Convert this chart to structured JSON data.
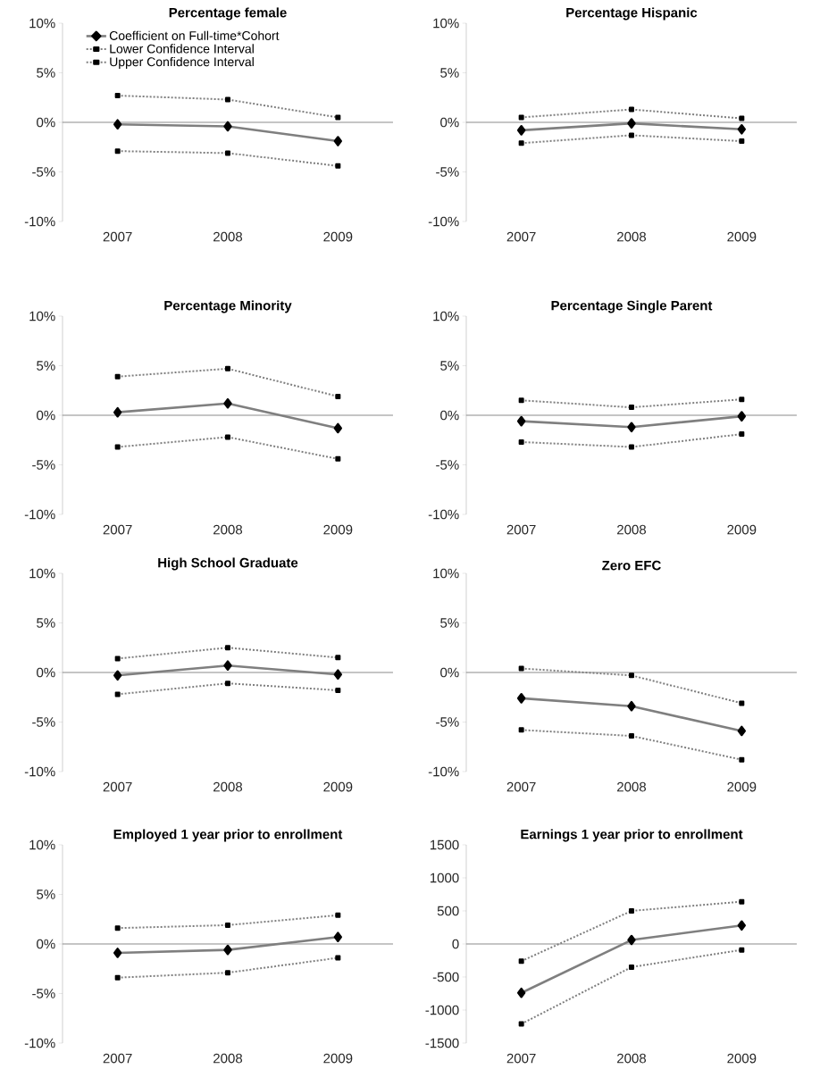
{
  "chart_data": [
    {
      "type": "line",
      "title": "Percentage female",
      "categories": [
        "2007",
        "2008",
        "2009"
      ],
      "ylim": [
        -10,
        10
      ],
      "yticks": [
        {
          "value": -10,
          "label": "-10%"
        },
        {
          "value": -5,
          "label": "-5%"
        },
        {
          "value": 0,
          "label": "0%"
        },
        {
          "value": 5,
          "label": "5%"
        },
        {
          "value": 10,
          "label": "10%"
        }
      ],
      "legend": "top left",
      "series": [
        {
          "name": "Coefficient on Full-time*Cohort",
          "color": "#7f7f7f",
          "marker": "diamond",
          "line_style": "solid",
          "values": [
            -0.2,
            -0.4,
            -1.9
          ]
        },
        {
          "name": "Lower Confidence Interval",
          "color": "#7f7f7f",
          "marker": "square",
          "line_style": "dotted",
          "values": [
            -2.9,
            -3.1,
            -4.4
          ]
        },
        {
          "name": "Upper Confidence Interval",
          "color": "#7f7f7f",
          "marker": "square",
          "line_style": "dotted",
          "values": [
            2.7,
            2.3,
            0.5
          ]
        }
      ]
    },
    {
      "type": "line",
      "title": "Percentage Hispanic",
      "categories": [
        "2007",
        "2008",
        "2009"
      ],
      "ylim": [
        -10,
        10
      ],
      "yticks": [
        {
          "value": -10,
          "label": "-10%"
        },
        {
          "value": -5,
          "label": "-5%"
        },
        {
          "value": 0,
          "label": "0%"
        },
        {
          "value": 5,
          "label": "5%"
        },
        {
          "value": 10,
          "label": "10%"
        }
      ],
      "series": [
        {
          "color": "#7f7f7f",
          "marker": "diamond",
          "line_style": "solid",
          "values": [
            -0.8,
            -0.1,
            -0.7
          ]
        },
        {
          "color": "#7f7f7f",
          "marker": "square",
          "line_style": "dotted",
          "values": [
            -2.1,
            -1.3,
            -1.9
          ]
        },
        {
          "color": "#7f7f7f",
          "marker": "square",
          "line_style": "dotted",
          "values": [
            0.5,
            1.3,
            0.4
          ]
        }
      ]
    },
    {
      "type": "line",
      "title": "Percentage Minority",
      "categories": [
        "2007",
        "2008",
        "2009"
      ],
      "ylim": [
        -10,
        10
      ],
      "yticks": [
        {
          "value": -10,
          "label": "-10%"
        },
        {
          "value": -5,
          "label": "-5%"
        },
        {
          "value": 0,
          "label": "0%"
        },
        {
          "value": 5,
          "label": "5%"
        },
        {
          "value": 10,
          "label": "10%"
        }
      ],
      "series": [
        {
          "color": "#7f7f7f",
          "marker": "diamond",
          "line_style": "solid",
          "values": [
            0.3,
            1.2,
            -1.3
          ]
        },
        {
          "color": "#7f7f7f",
          "marker": "square",
          "line_style": "dotted",
          "values": [
            -3.2,
            -2.2,
            -4.4
          ]
        },
        {
          "color": "#7f7f7f",
          "marker": "square",
          "line_style": "dotted",
          "values": [
            3.9,
            4.7,
            1.9
          ]
        }
      ]
    },
    {
      "type": "line",
      "title": "Percentage Single Parent",
      "categories": [
        "2007",
        "2008",
        "2009"
      ],
      "ylim": [
        -10,
        10
      ],
      "yticks": [
        {
          "value": -10,
          "label": "-10%"
        },
        {
          "value": -5,
          "label": "-5%"
        },
        {
          "value": 0,
          "label": "0%"
        },
        {
          "value": 5,
          "label": "5%"
        },
        {
          "value": 10,
          "label": "10%"
        }
      ],
      "series": [
        {
          "color": "#7f7f7f",
          "marker": "diamond",
          "line_style": "solid",
          "values": [
            -0.6,
            -1.2,
            -0.1
          ]
        },
        {
          "color": "#7f7f7f",
          "marker": "square",
          "line_style": "dotted",
          "values": [
            -2.7,
            -3.2,
            -1.9
          ]
        },
        {
          "color": "#7f7f7f",
          "marker": "square",
          "line_style": "dotted",
          "values": [
            1.5,
            0.8,
            1.6
          ]
        }
      ]
    },
    {
      "type": "line",
      "title": "High School Graduate",
      "categories": [
        "2007",
        "2008",
        "2009"
      ],
      "ylim": [
        -10,
        10
      ],
      "yticks": [
        {
          "value": -10,
          "label": "-10%"
        },
        {
          "value": -5,
          "label": "-5%"
        },
        {
          "value": 0,
          "label": "0%"
        },
        {
          "value": 5,
          "label": "5%"
        },
        {
          "value": 10,
          "label": "10%"
        }
      ],
      "series": [
        {
          "color": "#7f7f7f",
          "marker": "diamond",
          "line_style": "solid",
          "values": [
            -0.3,
            0.7,
            -0.2
          ]
        },
        {
          "color": "#7f7f7f",
          "marker": "square",
          "line_style": "dotted",
          "values": [
            -2.2,
            -1.1,
            -1.8
          ]
        },
        {
          "color": "#7f7f7f",
          "marker": "square",
          "line_style": "dotted",
          "values": [
            1.4,
            2.5,
            1.5
          ]
        }
      ]
    },
    {
      "type": "line",
      "title": "Zero EFC",
      "categories": [
        "2007",
        "2008",
        "2009"
      ],
      "ylim": [
        -10,
        10
      ],
      "yticks": [
        {
          "value": -10,
          "label": "-10%"
        },
        {
          "value": -5,
          "label": "-5%"
        },
        {
          "value": 0,
          "label": "0%"
        },
        {
          "value": 5,
          "label": "5%"
        },
        {
          "value": 10,
          "label": "10%"
        }
      ],
      "series": [
        {
          "color": "#7f7f7f",
          "marker": "diamond",
          "line_style": "solid",
          "values": [
            -2.6,
            -3.4,
            -5.9
          ]
        },
        {
          "color": "#7f7f7f",
          "marker": "square",
          "line_style": "dotted",
          "values": [
            -5.8,
            -6.4,
            -8.8
          ]
        },
        {
          "color": "#7f7f7f",
          "marker": "square",
          "line_style": "dotted",
          "values": [
            0.4,
            -0.3,
            -3.1
          ]
        }
      ]
    },
    {
      "type": "line",
      "title": "Employed 1 year prior to enrollment",
      "categories": [
        "2007",
        "2008",
        "2009"
      ],
      "ylim": [
        -10,
        10
      ],
      "yticks": [
        {
          "value": -10,
          "label": "-10%"
        },
        {
          "value": -5,
          "label": "-5%"
        },
        {
          "value": 0,
          "label": "0%"
        },
        {
          "value": 5,
          "label": "5%"
        },
        {
          "value": 10,
          "label": "10%"
        }
      ],
      "series": [
        {
          "color": "#7f7f7f",
          "marker": "diamond",
          "line_style": "solid",
          "values": [
            -0.9,
            -0.6,
            0.7
          ]
        },
        {
          "color": "#7f7f7f",
          "marker": "square",
          "line_style": "dotted",
          "values": [
            -3.4,
            -2.9,
            -1.4
          ]
        },
        {
          "color": "#7f7f7f",
          "marker": "square",
          "line_style": "dotted",
          "values": [
            1.6,
            1.9,
            2.9
          ]
        }
      ]
    },
    {
      "type": "line",
      "title": "Earnings 1 year prior to enrollment",
      "categories": [
        "2007",
        "2008",
        "2009"
      ],
      "ylim": [
        -1500,
        1500
      ],
      "yticks": [
        -1500,
        -1000,
        -500,
        0,
        500,
        1000,
        1500
      ],
      "series": [
        {
          "color": "#7f7f7f",
          "marker": "diamond",
          "line_style": "solid",
          "values": [
            -740,
            60,
            280
          ]
        },
        {
          "color": "#7f7f7f",
          "marker": "square",
          "line_style": "dotted",
          "values": [
            -1210,
            -350,
            -90
          ]
        },
        {
          "color": "#7f7f7f",
          "marker": "square",
          "line_style": "dotted",
          "values": [
            -260,
            500,
            640
          ]
        }
      ]
    }
  ]
}
